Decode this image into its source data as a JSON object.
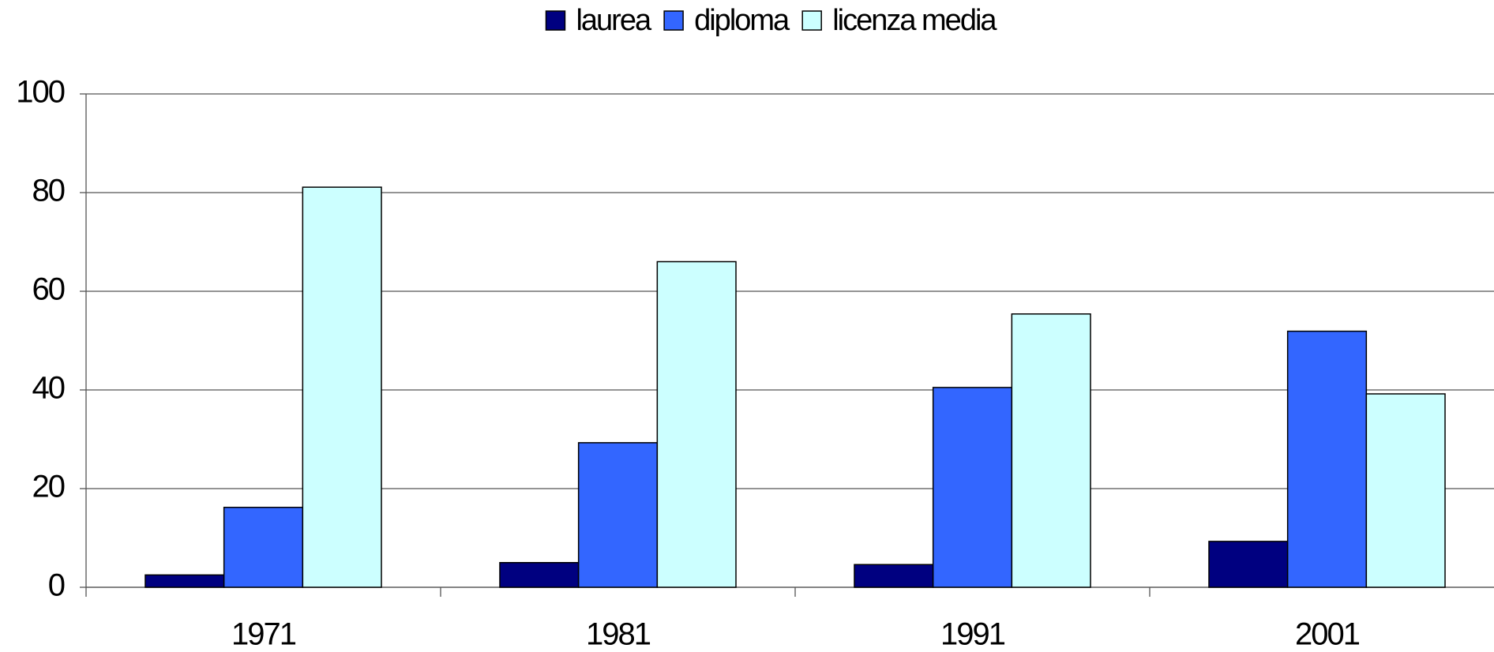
{
  "chart_data": {
    "type": "bar",
    "categories": [
      "1971",
      "1981",
      "1991",
      "2001"
    ],
    "series": [
      {
        "name": "laurea",
        "color": "#000080",
        "values": [
          2.5,
          5.0,
          4.6,
          9.3
        ]
      },
      {
        "name": "diploma",
        "color": "#3366ff",
        "values": [
          16.2,
          29.3,
          40.5,
          51.9
        ]
      },
      {
        "name": "licenza media",
        "color": "#ccffff",
        "values": [
          81.1,
          66.0,
          55.4,
          39.2
        ]
      }
    ],
    "ylim": [
      0,
      100
    ],
    "yticks": [
      0,
      20,
      40,
      60,
      80,
      100
    ],
    "grid": true,
    "legend": "top"
  }
}
